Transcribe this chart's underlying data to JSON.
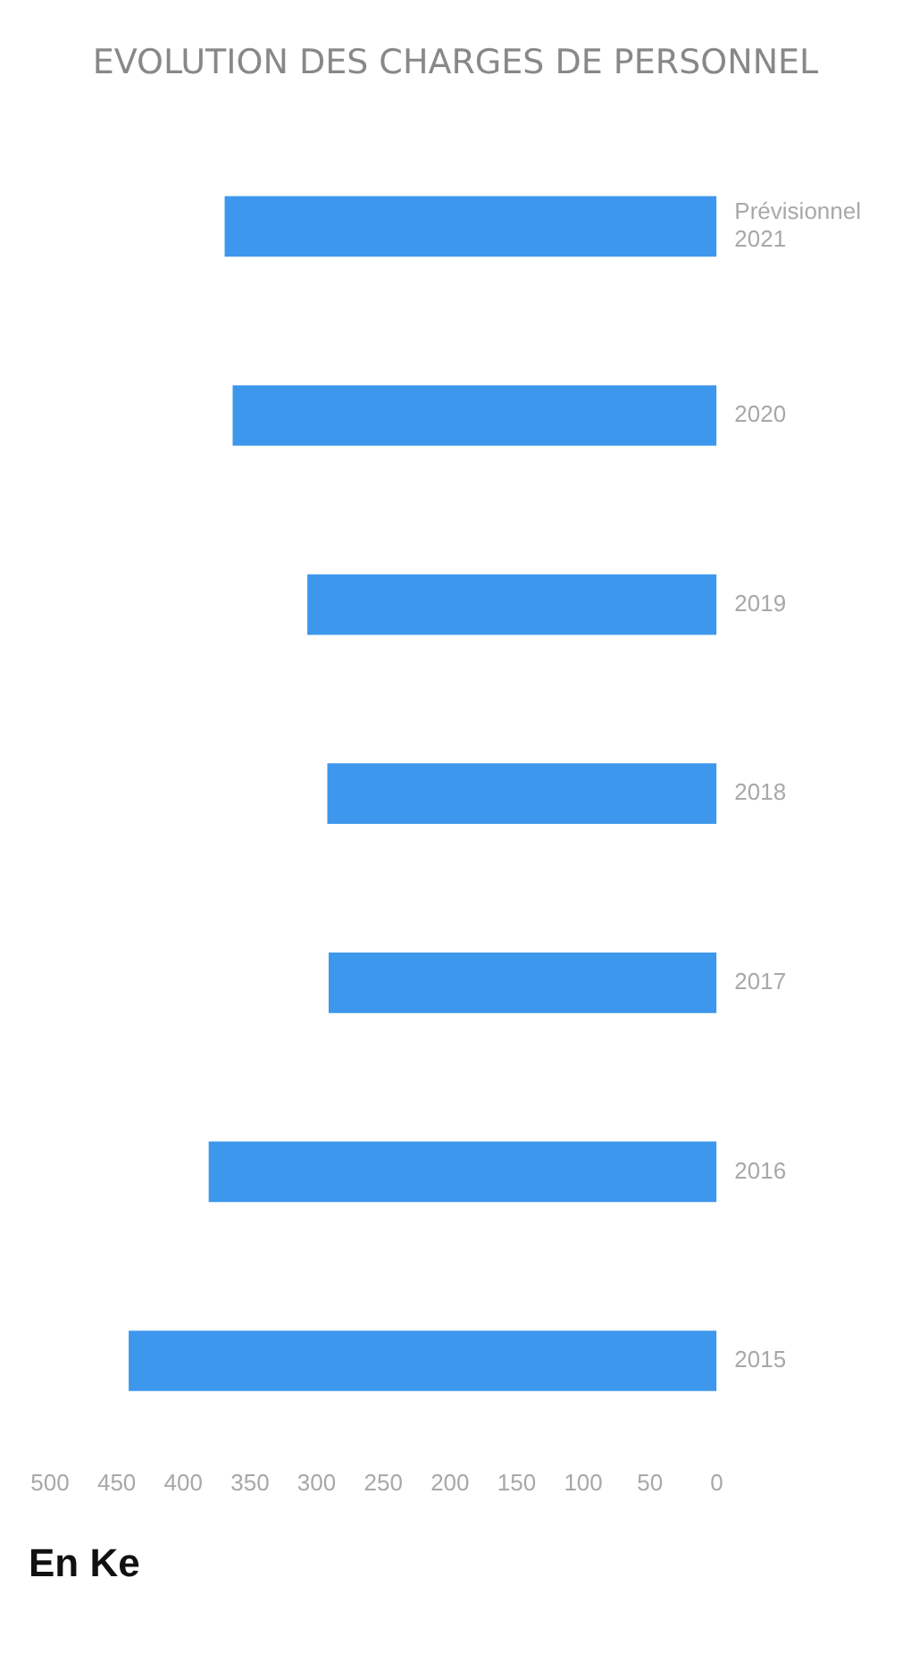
{
  "chart_data": {
    "type": "bar",
    "orientation": "horizontal",
    "title": "EVOLUTION DES CHARGES DE PERSONNEL",
    "xlabel": "En Ke",
    "categories": [
      "Prévisionnel\n2021",
      "2020",
      "2019",
      "2018",
      "2017",
      "2016",
      "2015"
    ],
    "values": [
      369,
      363,
      307,
      292,
      291,
      381,
      441
    ],
    "color": "#3d97ec",
    "xlim": [
      500,
      0
    ],
    "xticks": [
      500,
      450,
      400,
      350,
      300,
      250,
      200,
      150,
      100,
      50,
      0
    ]
  }
}
